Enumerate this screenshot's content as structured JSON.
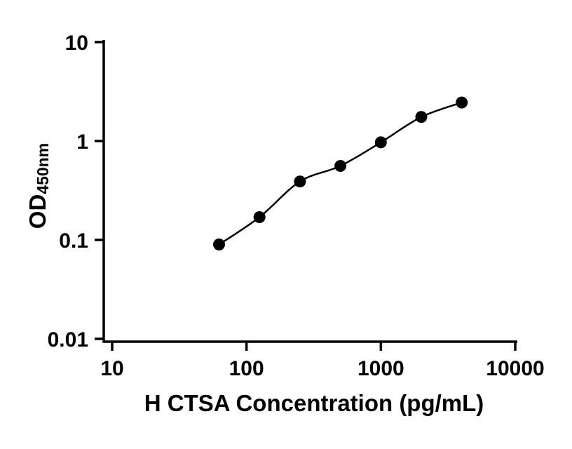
{
  "figure": {
    "background": "#ffffff"
  },
  "chart_data": {
    "type": "scatter",
    "title": "",
    "xlabel": "H CTSA Concentration (pg/mL)",
    "ylabel": "OD",
    "ylabel_subscript": "450nm",
    "xscale": "log",
    "yscale": "log",
    "xlim": [
      10,
      10000
    ],
    "ylim": [
      0.01,
      10
    ],
    "x_ticks": [
      10,
      100,
      1000,
      10000
    ],
    "x_tick_labels": [
      "10",
      "100",
      "1000",
      "10000"
    ],
    "y_ticks": [
      10,
      1,
      0.1,
      0.01
    ],
    "y_tick_labels": [
      "10",
      "1",
      "0.1",
      "0.01"
    ],
    "grid": false,
    "legend_visible": false,
    "axis_color": "#000000",
    "series": [
      {
        "x": [
          62.5,
          125,
          250,
          500,
          1000,
          2000,
          4000
        ],
        "y": [
          0.09,
          0.17,
          0.39,
          0.56,
          0.97,
          1.75,
          2.45
        ],
        "marker": "circle",
        "marker_color": "#000000",
        "line_color": "#000000",
        "line_style": "solid",
        "curve": "smooth"
      }
    ]
  }
}
